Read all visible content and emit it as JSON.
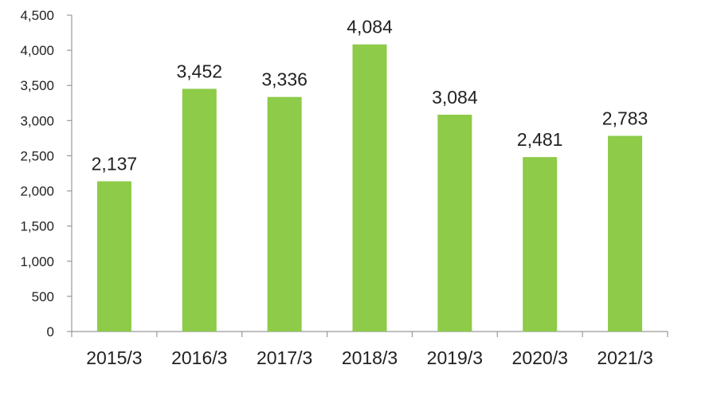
{
  "chart_data": {
    "type": "bar",
    "categories": [
      "2015/3",
      "2016/3",
      "2017/3",
      "2018/3",
      "2019/3",
      "2020/3",
      "2021/3"
    ],
    "series": [
      {
        "values": [
          2137,
          3452,
          3336,
          4084,
          3084,
          2481,
          2783
        ]
      }
    ],
    "data_labels": [
      "2,137",
      "3,452",
      "3,336",
      "4,084",
      "3,084",
      "2,481",
      "2,783"
    ],
    "y_ticks": [
      "0",
      "500",
      "1,000",
      "1,500",
      "2,000",
      "2,500",
      "3,000",
      "3,500",
      "4,000",
      "4,500"
    ],
    "y_tick_values": [
      0,
      500,
      1000,
      1500,
      2000,
      2500,
      3000,
      3500,
      4000,
      4500
    ],
    "ylim": [
      0,
      4500
    ],
    "grid": false,
    "legend": "none",
    "bar_color": "#8DCB48",
    "axis_color": "#999999"
  }
}
